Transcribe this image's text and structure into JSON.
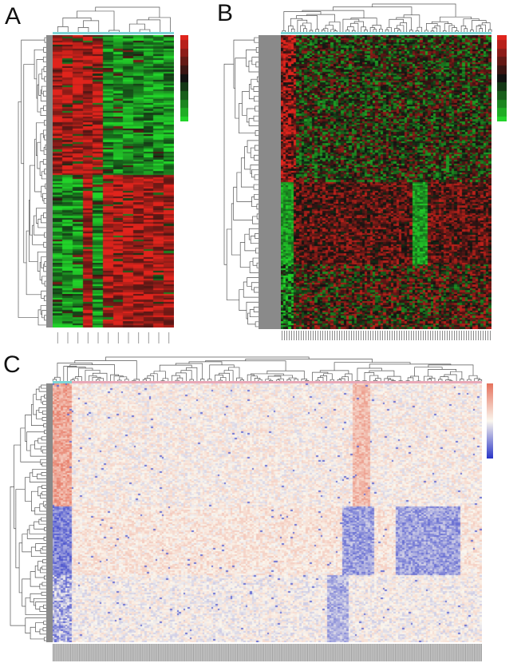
{
  "figure": {
    "panels": [
      {
        "id": "A",
        "label": "A",
        "palette": "red-black-green",
        "row_groups": [
          {
            "cols_high": [
              1,
              1,
              1,
              1,
              1,
              0,
              0,
              0,
              0,
              0,
              0,
              0
            ]
          },
          {
            "cols_high": [
              0,
              0,
              0,
              1,
              0,
              1,
              1,
              1,
              1,
              1,
              1,
              1
            ]
          }
        ],
        "group_split_fraction": 0.48,
        "n_columns": 12
      },
      {
        "id": "B",
        "label": "B",
        "palette": "red-black-green",
        "row_groups": [
          {
            "cols_high": "left-cluster-red"
          },
          {
            "cols_high": "mixed"
          }
        ],
        "n_columns": 80
      },
      {
        "id": "C",
        "label": "C",
        "palette": "red-white-blue",
        "n_columns": 200
      }
    ],
    "colors": {
      "red_high": "#e0241c",
      "green_low": "#22d42a",
      "black_mid": "#111111",
      "blue_low": "#2b36c8",
      "white_mid": "#fbf7ee",
      "red_warm": "#e6735e",
      "annotation_bar": "#7a7a7a",
      "cyan_strip": "#7fd6d6",
      "pink_strip": "#e9a9b8",
      "dendrogram": "#555555"
    }
  }
}
